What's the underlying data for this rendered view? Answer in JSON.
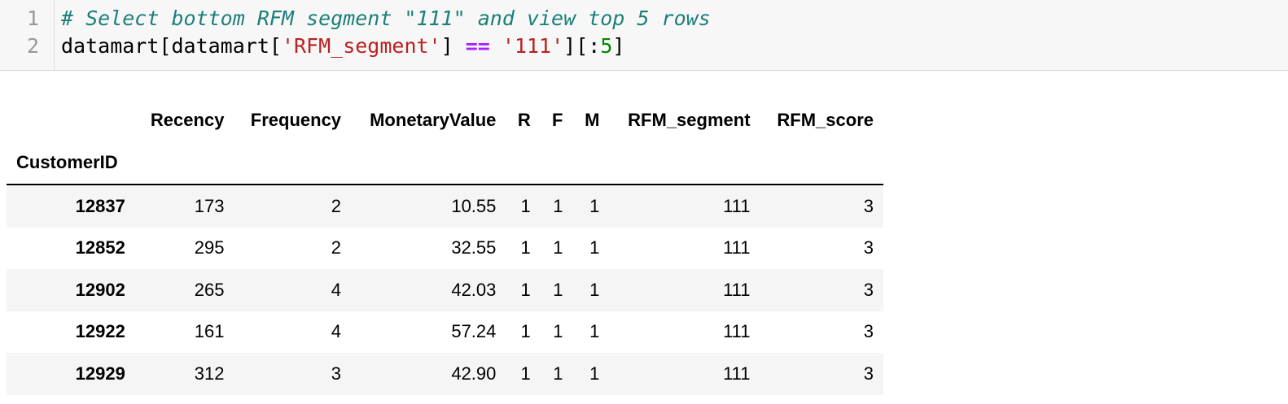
{
  "code_cell": {
    "line_numbers": [
      "1",
      "2"
    ],
    "line1": {
      "comment": "# Select bottom RFM segment \"111\" and view top 5 rows"
    },
    "line2": {
      "part1": "datamart[datamart[",
      "str1": "'RFM_segment'",
      "part2": "] ",
      "op": "==",
      "part3": " ",
      "str2": "'111'",
      "part4": "][:",
      "num": "5",
      "part5": "]"
    }
  },
  "table": {
    "index_name": "CustomerID",
    "columns": [
      "Recency",
      "Frequency",
      "MonetaryValue",
      "R",
      "F",
      "M",
      "RFM_segment",
      "RFM_score"
    ],
    "rows": [
      {
        "index": "12837",
        "values": [
          "173",
          "2",
          "10.55",
          "1",
          "1",
          "1",
          "111",
          "3"
        ]
      },
      {
        "index": "12852",
        "values": [
          "295",
          "2",
          "32.55",
          "1",
          "1",
          "1",
          "111",
          "3"
        ]
      },
      {
        "index": "12902",
        "values": [
          "265",
          "4",
          "42.03",
          "1",
          "1",
          "1",
          "111",
          "3"
        ]
      },
      {
        "index": "12922",
        "values": [
          "161",
          "4",
          "57.24",
          "1",
          "1",
          "1",
          "111",
          "3"
        ]
      },
      {
        "index": "12929",
        "values": [
          "312",
          "3",
          "42.90",
          "1",
          "1",
          "1",
          "111",
          "3"
        ]
      }
    ]
  }
}
